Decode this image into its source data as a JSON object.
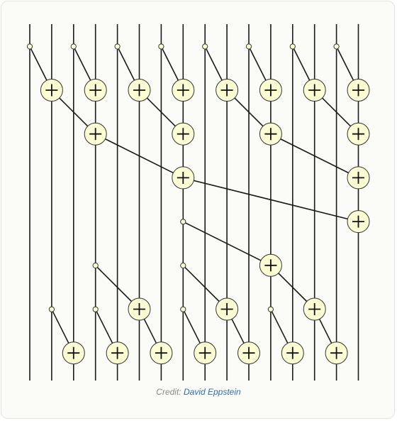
{
  "credit": {
    "prefix": "Credit:",
    "author": "David Eppstein"
  },
  "diagram": {
    "wire_count": 16,
    "stages": [
      {
        "ops": [
          [
            0,
            1
          ],
          [
            2,
            3
          ],
          [
            4,
            5
          ],
          [
            6,
            7
          ],
          [
            8,
            9
          ],
          [
            10,
            11
          ],
          [
            12,
            13
          ],
          [
            14,
            15
          ]
        ]
      },
      {
        "ops": [
          [
            1,
            3
          ],
          [
            5,
            7
          ],
          [
            9,
            11
          ],
          [
            13,
            15
          ]
        ]
      },
      {
        "ops": [
          [
            3,
            7
          ],
          [
            11,
            15
          ]
        ]
      },
      {
        "ops": [
          [
            7,
            15
          ]
        ]
      },
      {
        "ops": [
          [
            7,
            11
          ]
        ]
      },
      {
        "ops": [
          [
            3,
            5
          ],
          [
            7,
            9
          ],
          [
            11,
            13
          ]
        ]
      },
      {
        "ops": [
          [
            1,
            2
          ],
          [
            3,
            4
          ],
          [
            5,
            6
          ],
          [
            7,
            8
          ],
          [
            9,
            10
          ],
          [
            11,
            12
          ],
          [
            13,
            14
          ]
        ]
      }
    ],
    "symbols": {
      "operator": "+",
      "input": "dot"
    },
    "colors": {
      "wire": "#1a1a1a",
      "node_fill": "#fdfdd4",
      "node_stroke": "#333333",
      "plus": "#111111"
    }
  }
}
